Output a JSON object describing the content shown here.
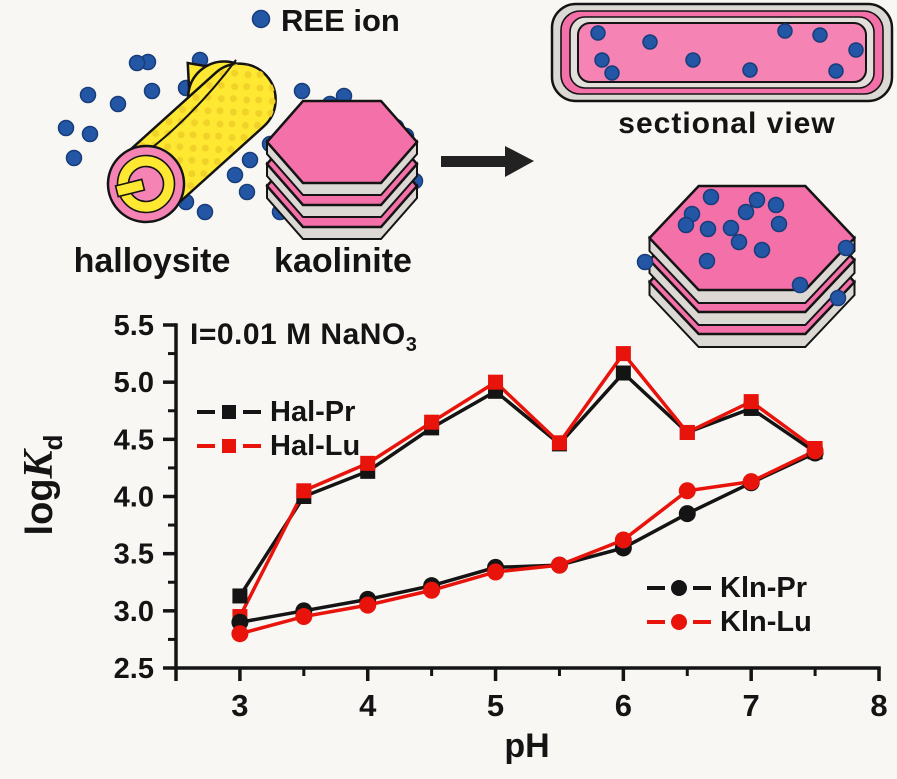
{
  "colors": {
    "background": "#f8f7f3",
    "series_black": "#141414",
    "series_red": "#e8140c",
    "halloysite_yellow": "#ffe831",
    "clay_pink": "#f470a8",
    "clay_pink_light": "#f584b4",
    "layer_gray": "#dcd9d5",
    "ree_ion_blue": "#2456a6",
    "ree_ion_blue_edge": "#173d7a",
    "text": "#141414"
  },
  "illustration": {
    "ree_ion_label": "REE ion",
    "halloysite_label": "halloysite",
    "kaolinite_label": "kaolinite",
    "sectional_view_label": "sectional view"
  },
  "chart_data": {
    "type": "line",
    "annotation": {
      "text": "I=0.01 M NaNO",
      "sub": "3"
    },
    "xlabel": "pH",
    "ylabel": {
      "pre": "log",
      "italic": "K",
      "sub": "d"
    },
    "xlim": [
      2.5,
      8
    ],
    "ylim": [
      2.5,
      5.5
    ],
    "xticks": [
      "3",
      "4",
      "5",
      "6",
      "7",
      "8"
    ],
    "yticks": [
      "2.5",
      "3.0",
      "3.5",
      "4.0",
      "4.5",
      "5.0",
      "5.5"
    ],
    "grid": false,
    "x": [
      3,
      3.5,
      4,
      4.5,
      5,
      5.5,
      6,
      6.5,
      7,
      7.5
    ],
    "series": [
      {
        "name": "Hal-Pr",
        "color": "#141414",
        "marker": "square",
        "values": [
          3.13,
          4.0,
          4.22,
          4.6,
          4.92,
          4.46,
          5.08,
          4.56,
          4.77,
          4.39
        ]
      },
      {
        "name": "Hal-Lu",
        "color": "#e8140c",
        "marker": "square",
        "values": [
          2.95,
          4.05,
          4.29,
          4.65,
          5.0,
          4.47,
          5.25,
          4.56,
          4.83,
          4.42
        ]
      },
      {
        "name": "Kln-Pr",
        "color": "#141414",
        "marker": "circle",
        "values": [
          2.9,
          3.0,
          3.1,
          3.22,
          3.38,
          3.4,
          3.55,
          3.85,
          4.12,
          4.38
        ]
      },
      {
        "name": "Kln-Lu",
        "color": "#e8140c",
        "marker": "circle",
        "values": [
          2.8,
          2.95,
          3.05,
          3.18,
          3.34,
          3.4,
          3.62,
          4.05,
          4.13,
          4.4
        ]
      }
    ],
    "legend_positions": {
      "hal": "upper-left",
      "kln": "lower-right"
    }
  }
}
